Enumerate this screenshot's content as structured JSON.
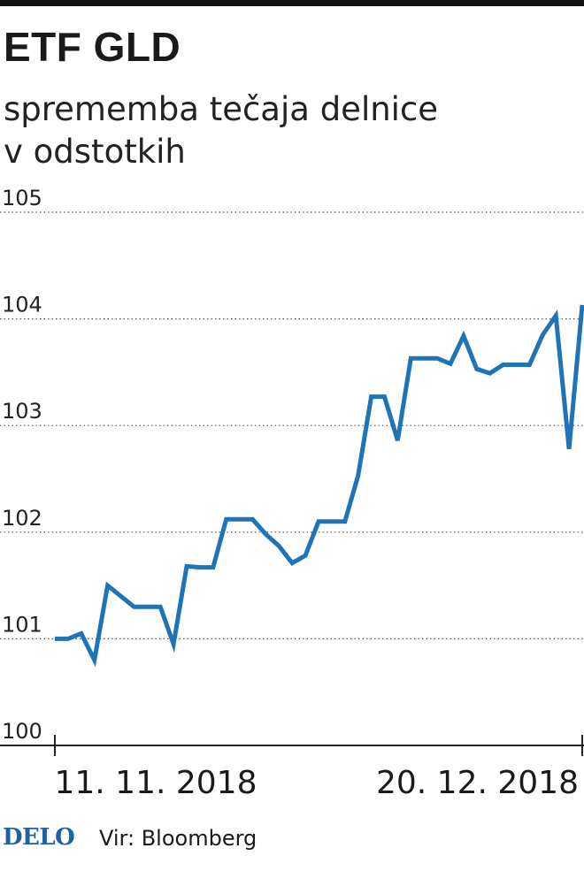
{
  "colors": {
    "line": "#1f74b8",
    "grid": "#555555",
    "axis": "#222222",
    "logo": "#1f5fa6"
  },
  "header": {
    "title": "ETF GLD",
    "subtitle_line1": "sprememba tečaja delnice",
    "subtitle_line2": "v odstotkih"
  },
  "footer": {
    "logo": "DELO",
    "source": "Vir: Bloomberg"
  },
  "chart_data": {
    "type": "line",
    "title": "ETF GLD",
    "subtitle": "sprememba tečaja delnice v odstotkih",
    "ylim": [
      100,
      105
    ],
    "yticks": [
      {
        "value": 100,
        "label": "100"
      },
      {
        "value": 101,
        "label": "101"
      },
      {
        "value": 102,
        "label": "102"
      },
      {
        "value": 103,
        "label": "103"
      },
      {
        "value": 104,
        "label": "104"
      },
      {
        "value": 105,
        "label": "105"
      }
    ],
    "xlabels": [
      "11. 11. 2018",
      "20. 12. 2018"
    ],
    "grid": true,
    "series": [
      {
        "values": [
          101.0,
          101.0,
          101.05,
          100.8,
          101.5,
          101.4,
          101.3,
          101.3,
          101.3,
          100.95,
          101.68,
          101.67,
          101.67,
          102.12,
          102.12,
          102.12,
          101.98,
          101.87,
          101.71,
          101.78,
          102.1,
          102.1,
          102.1,
          102.53,
          103.27,
          103.27,
          102.86,
          103.63,
          103.63,
          103.63,
          103.58,
          103.84,
          103.53,
          103.49,
          103.57,
          103.57,
          103.57,
          103.85,
          104.03,
          102.78,
          104.13
        ]
      }
    ]
  }
}
